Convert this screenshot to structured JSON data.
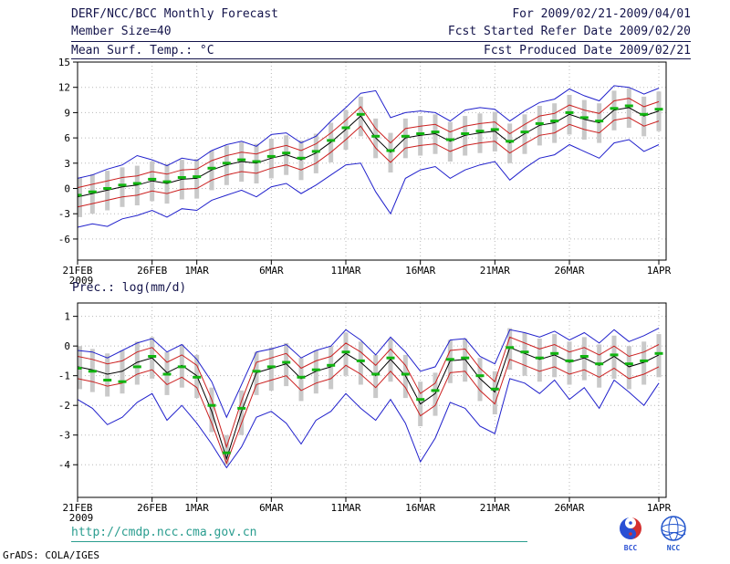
{
  "header": {
    "title": "DERF/NCC/BCC Monthly Forecast",
    "member_size": "Member Size=40",
    "for_range": "For 2009/02/21-2009/04/01",
    "fcst_started": "Fcst Started Refer Date 2009/02/20",
    "fcst_produced": "Fcst Produced Date 2009/02/21"
  },
  "footer": {
    "url": "http://cmdp.ncc.cma.gov.cn",
    "credit": "GrADS: COLA/IGES"
  },
  "logos": {
    "bcc": "BCC",
    "ncc": "NCC"
  },
  "colors": {
    "header_text": "#14144b",
    "url": "#2a9d8f",
    "grid": "#b8b8b8",
    "envelope_blue": "#2020cc",
    "quartile_red": "#cc2020",
    "median_black": "#000000",
    "ensemble_mean_green": "#10b410",
    "spread_bar_gray": "#c9c9c9"
  },
  "chart_data": [
    {
      "type": "line",
      "title": "Mean Surf. Temp.: °C",
      "xlabel": "",
      "ylabel": "",
      "grid": true,
      "legend": "none",
      "ylim": [
        -8.5,
        15
      ],
      "yticks": [
        15,
        12,
        9,
        6,
        3,
        0,
        -3,
        -6
      ],
      "x_axis": {
        "n_points": 40,
        "tick_positions": [
          0,
          5,
          8,
          13,
          18,
          23,
          28,
          33,
          39
        ],
        "tick_labels": [
          "21FEB",
          "26FEB",
          "1MAR",
          "6MAR",
          "11MAR",
          "16MAR",
          "21MAR",
          "26MAR",
          "1APR"
        ],
        "first_tick_sub": "2009"
      },
      "bars": {
        "name": "inner-spread",
        "color": "#c9c9c9",
        "hi": [
          1.3,
          1.7,
          2.1,
          2.5,
          2.7,
          3.2,
          2.9,
          3.4,
          3.5,
          4.5,
          5.1,
          5.5,
          5.3,
          5.9,
          6.3,
          5.7,
          6.5,
          7.8,
          9.3,
          10.9,
          8.3,
          6.6,
          8.3,
          8.6,
          8.8,
          7.9,
          8.6,
          8.9,
          9.1,
          7.7,
          8.8,
          9.8,
          10.1,
          11.1,
          10.5,
          10.1,
          11.6,
          11.9,
          10.9,
          11.5
        ],
        "lo": [
          -3.4,
          -3.0,
          -2.6,
          -2.2,
          -2.0,
          -1.5,
          -1.8,
          -1.3,
          -1.2,
          -0.2,
          0.4,
          0.8,
          0.6,
          1.2,
          1.6,
          1.0,
          1.8,
          3.1,
          4.6,
          6.2,
          3.6,
          1.9,
          3.6,
          3.9,
          4.1,
          3.2,
          3.9,
          4.2,
          4.4,
          3.0,
          4.1,
          5.1,
          5.4,
          6.4,
          5.8,
          5.4,
          6.9,
          7.2,
          6.2,
          6.8
        ]
      },
      "mean_dash": {
        "name": "ensemble-mean",
        "color": "#10b410",
        "values": [
          -0.8,
          -0.4,
          0.0,
          0.4,
          0.6,
          1.1,
          0.8,
          1.3,
          1.4,
          2.4,
          3.0,
          3.4,
          3.2,
          3.8,
          4.2,
          3.6,
          4.4,
          5.7,
          7.2,
          8.8,
          6.2,
          4.5,
          6.2,
          6.5,
          6.7,
          5.8,
          6.5,
          6.8,
          7.0,
          5.6,
          6.7,
          7.7,
          8.0,
          9.0,
          8.4,
          8.0,
          9.5,
          9.8,
          8.8,
          9.4
        ]
      },
      "series": [
        {
          "name": "ensemble-max",
          "color": "#2020cc",
          "values": [
            1.2,
            1.6,
            2.3,
            2.8,
            3.9,
            3.4,
            2.7,
            3.6,
            3.3,
            4.5,
            5.2,
            5.6,
            5.0,
            6.4,
            6.6,
            5.4,
            6.2,
            8.0,
            9.6,
            11.3,
            11.6,
            8.4,
            9.0,
            9.2,
            9.0,
            8.0,
            9.3,
            9.6,
            9.4,
            8.0,
            9.2,
            10.2,
            10.6,
            11.8,
            11.0,
            10.4,
            12.2,
            12.0,
            11.2,
            11.9
          ]
        },
        {
          "name": "upper-quartile",
          "color": "#cc2020",
          "values": [
            0.1,
            0.5,
            0.9,
            1.3,
            1.5,
            2.0,
            1.7,
            2.2,
            2.3,
            3.3,
            3.9,
            4.3,
            4.1,
            4.7,
            5.1,
            4.5,
            5.3,
            6.6,
            8.1,
            9.7,
            7.1,
            5.4,
            7.1,
            7.4,
            7.6,
            6.7,
            7.4,
            7.7,
            7.9,
            6.5,
            7.6,
            8.6,
            8.9,
            9.9,
            9.3,
            8.9,
            10.4,
            10.7,
            9.7,
            10.3
          ]
        },
        {
          "name": "median",
          "color": "#000000",
          "values": [
            -1.0,
            -0.6,
            -0.2,
            0.2,
            0.4,
            0.9,
            0.6,
            1.1,
            1.2,
            2.2,
            2.8,
            3.2,
            3.0,
            3.6,
            4.0,
            3.4,
            4.2,
            5.5,
            7.0,
            8.6,
            6.0,
            4.3,
            6.0,
            6.3,
            6.5,
            5.6,
            6.3,
            6.6,
            6.8,
            5.4,
            6.5,
            7.5,
            7.8,
            8.8,
            8.2,
            7.8,
            9.3,
            9.6,
            8.6,
            9.2
          ]
        },
        {
          "name": "lower-quartile",
          "color": "#cc2020",
          "values": [
            -2.2,
            -1.8,
            -1.4,
            -1.0,
            -0.8,
            -0.3,
            -0.6,
            -0.1,
            0.0,
            1.0,
            1.6,
            2.0,
            1.8,
            2.4,
            2.8,
            2.2,
            3.0,
            4.3,
            5.8,
            7.4,
            4.8,
            3.1,
            4.8,
            5.1,
            5.3,
            4.4,
            5.1,
            5.4,
            5.6,
            4.2,
            5.3,
            6.3,
            6.6,
            7.6,
            7.0,
            6.6,
            8.1,
            8.4,
            7.4,
            8.0
          ]
        },
        {
          "name": "ensemble-min",
          "color": "#2020cc",
          "values": [
            -4.6,
            -4.2,
            -4.5,
            -3.6,
            -3.2,
            -2.6,
            -3.4,
            -2.4,
            -2.6,
            -1.4,
            -0.8,
            -0.2,
            -1.0,
            0.2,
            0.6,
            -0.6,
            0.4,
            1.6,
            2.8,
            3.0,
            -0.4,
            -3.0,
            1.2,
            2.2,
            2.6,
            1.2,
            2.2,
            2.8,
            3.2,
            1.0,
            2.4,
            3.6,
            4.0,
            5.2,
            4.4,
            3.6,
            5.4,
            5.8,
            4.4,
            5.2
          ]
        }
      ]
    },
    {
      "type": "line",
      "title": "Prec.: log(mm/d)",
      "xlabel": "",
      "ylabel": "",
      "grid": true,
      "legend": "none",
      "ylim": [
        -5.1,
        1.45
      ],
      "yticks": [
        1,
        0,
        -1,
        -2,
        -3,
        -4
      ],
      "x_axis": {
        "n_points": 40,
        "tick_positions": [
          0,
          5,
          8,
          13,
          18,
          23,
          28,
          33,
          39
        ],
        "tick_labels": [
          "21FEB",
          "26FEB",
          "1MAR",
          "6MAR",
          "11MAR",
          "16MAR",
          "21MAR",
          "26MAR",
          "1APR"
        ],
        "first_tick_sub": "2009"
      },
      "bars": {
        "name": "inner-spread",
        "color": "#c9c9c9",
        "hi": [
          0.0,
          -0.1,
          -0.25,
          -0.15,
          0.15,
          0.3,
          -0.2,
          0.05,
          -0.3,
          -1.4,
          -3.0,
          -1.5,
          -0.2,
          -0.05,
          0.1,
          -0.4,
          -0.15,
          0.0,
          0.45,
          0.15,
          -0.3,
          0.25,
          -0.3,
          -1.2,
          -0.9,
          0.2,
          0.25,
          -0.4,
          -0.85,
          0.6,
          0.45,
          0.25,
          0.4,
          0.15,
          0.3,
          0.05,
          0.35,
          0.0,
          0.15,
          0.4
        ],
        "lo": [
          -1.45,
          -1.55,
          -1.7,
          -1.6,
          -1.3,
          -1.1,
          -1.65,
          -1.4,
          -1.75,
          -2.9,
          -4.0,
          -3.0,
          -1.65,
          -1.5,
          -1.35,
          -1.85,
          -1.6,
          -1.45,
          -1.0,
          -1.3,
          -1.75,
          -1.2,
          -1.75,
          -2.7,
          -2.35,
          -1.25,
          -1.2,
          -1.85,
          -2.3,
          -0.8,
          -1.0,
          -1.2,
          -1.05,
          -1.3,
          -1.15,
          -1.4,
          -1.1,
          -1.45,
          -1.3,
          -1.05
        ]
      },
      "mean_dash": {
        "name": "ensemble-mean",
        "color": "#10b410",
        "values": [
          -0.75,
          -0.85,
          -1.15,
          -1.2,
          -0.7,
          -0.35,
          -0.95,
          -0.7,
          -1.05,
          -2.0,
          -3.6,
          -2.1,
          -0.85,
          -0.7,
          -0.55,
          -1.05,
          -0.8,
          -0.65,
          -0.2,
          -0.5,
          -0.95,
          -0.4,
          -0.95,
          -1.8,
          -1.5,
          -0.45,
          -0.4,
          -1.0,
          -1.45,
          -0.05,
          -0.2,
          -0.4,
          -0.25,
          -0.5,
          -0.35,
          -0.6,
          -0.3,
          -0.6,
          -0.5,
          -0.25
        ]
      },
      "series": [
        {
          "name": "ensemble-max",
          "color": "#2020cc",
          "values": [
            -0.15,
            -0.2,
            -0.4,
            -0.15,
            0.1,
            0.25,
            -0.2,
            0.05,
            -0.45,
            -1.2,
            -2.4,
            -1.3,
            -0.2,
            -0.1,
            0.05,
            -0.4,
            -0.15,
            0.0,
            0.55,
            0.2,
            -0.3,
            0.3,
            -0.2,
            -0.85,
            -0.7,
            0.2,
            0.25,
            -0.35,
            -0.6,
            0.55,
            0.45,
            0.3,
            0.5,
            0.2,
            0.45,
            0.1,
            0.55,
            0.15,
            0.35,
            0.6
          ]
        },
        {
          "name": "upper-quartile",
          "color": "#cc2020",
          "values": [
            -0.35,
            -0.45,
            -0.6,
            -0.5,
            -0.2,
            -0.05,
            -0.55,
            -0.3,
            -0.65,
            -1.8,
            -3.4,
            -1.85,
            -0.55,
            -0.4,
            -0.25,
            -0.75,
            -0.5,
            -0.35,
            0.1,
            -0.2,
            -0.65,
            -0.1,
            -0.65,
            -1.6,
            -1.25,
            -0.15,
            -0.1,
            -0.75,
            -1.2,
            0.3,
            0.1,
            -0.1,
            0.05,
            -0.2,
            -0.05,
            -0.3,
            0.0,
            -0.35,
            -0.2,
            0.05
          ]
        },
        {
          "name": "median",
          "color": "#000000",
          "values": [
            -0.7,
            -0.8,
            -0.95,
            -0.85,
            -0.55,
            -0.4,
            -0.9,
            -0.65,
            -1.0,
            -2.2,
            -3.8,
            -2.2,
            -0.9,
            -0.75,
            -0.6,
            -1.1,
            -0.85,
            -0.7,
            -0.25,
            -0.55,
            -1.0,
            -0.45,
            -1.0,
            -1.95,
            -1.6,
            -0.5,
            -0.45,
            -1.1,
            -1.55,
            -0.05,
            -0.25,
            -0.45,
            -0.3,
            -0.55,
            -0.4,
            -0.65,
            -0.35,
            -0.7,
            -0.55,
            -0.3
          ]
        },
        {
          "name": "lower-quartile",
          "color": "#cc2020",
          "values": [
            -1.1,
            -1.2,
            -1.35,
            -1.25,
            -0.95,
            -0.8,
            -1.3,
            -1.05,
            -1.4,
            -2.6,
            -3.95,
            -2.6,
            -1.3,
            -1.15,
            -1.0,
            -1.5,
            -1.25,
            -1.1,
            -0.65,
            -0.95,
            -1.4,
            -0.85,
            -1.4,
            -2.35,
            -2.0,
            -0.9,
            -0.85,
            -1.5,
            -1.95,
            -0.45,
            -0.65,
            -0.85,
            -0.7,
            -0.95,
            -0.8,
            -1.05,
            -0.75,
            -1.1,
            -0.95,
            -0.7
          ]
        },
        {
          "name": "ensemble-min",
          "color": "#2020cc",
          "values": [
            -1.8,
            -2.1,
            -2.65,
            -2.4,
            -1.9,
            -1.6,
            -2.5,
            -2.0,
            -2.6,
            -3.3,
            -4.1,
            -3.4,
            -2.4,
            -2.2,
            -2.6,
            -3.3,
            -2.5,
            -2.2,
            -1.6,
            -2.1,
            -2.5,
            -1.8,
            -2.6,
            -3.9,
            -3.1,
            -1.9,
            -2.1,
            -2.7,
            -2.95,
            -1.1,
            -1.25,
            -1.6,
            -1.15,
            -1.8,
            -1.4,
            -2.1,
            -1.15,
            -1.55,
            -2.0,
            -1.25
          ]
        }
      ]
    }
  ]
}
